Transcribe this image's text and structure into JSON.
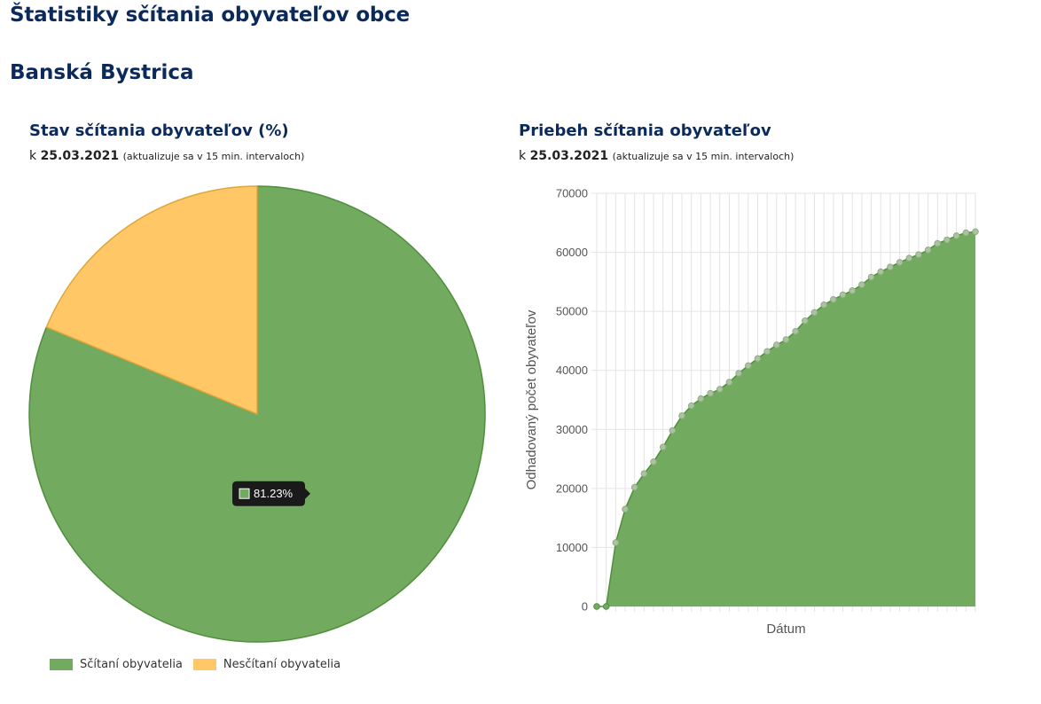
{
  "page": {
    "title": "Štatistiky sčítania obyvateľov obce",
    "municipality": "Banská Bystrica"
  },
  "left_panel": {
    "title": "Stav sčítania obyvateľov (%)",
    "date_prefix": "k",
    "date": "25.03.2021",
    "note": "(aktualizuje sa v 15 min. intervaloch)",
    "tooltip": "81.23%"
  },
  "right_panel": {
    "title": "Priebeh sčítania obyvateľov",
    "date_prefix": "k",
    "date": "25.03.2021",
    "note": "(aktualizuje sa v 15 min. intervaloch)"
  },
  "colors": {
    "counted": "#72ab5f",
    "counted_border": "#4f8f3c",
    "not_counted": "#ffc766",
    "not_counted_border": "#e0a63a",
    "heading": "#0b2a5b"
  },
  "chart_data": [
    {
      "type": "pie",
      "categories": [
        "Sčítaní obyvatelia",
        "Nesčítaní obyvatelia"
      ],
      "values": [
        81.23,
        18.77
      ],
      "legend": "bottom-left"
    },
    {
      "type": "area",
      "xlabel": "Dátum",
      "ylabel": "Odhadovaný počet obyvateľov",
      "ylim": [
        0,
        70000
      ],
      "yticks": [
        0,
        10000,
        20000,
        30000,
        40000,
        50000,
        60000,
        70000
      ],
      "grid": true,
      "series": [
        {
          "values": [
            0,
            0,
            10800,
            16500,
            20200,
            22500,
            24500,
            27000,
            29800,
            32300,
            34000,
            35200,
            36100,
            36800,
            38000,
            39500,
            40800,
            42000,
            43200,
            44300,
            45200,
            46600,
            48400,
            49800,
            51100,
            52000,
            52800,
            53500,
            54500,
            55800,
            56700,
            57500,
            58300,
            59000,
            59600,
            60400,
            61500,
            62100,
            62800,
            63300,
            63500
          ]
        }
      ]
    }
  ]
}
